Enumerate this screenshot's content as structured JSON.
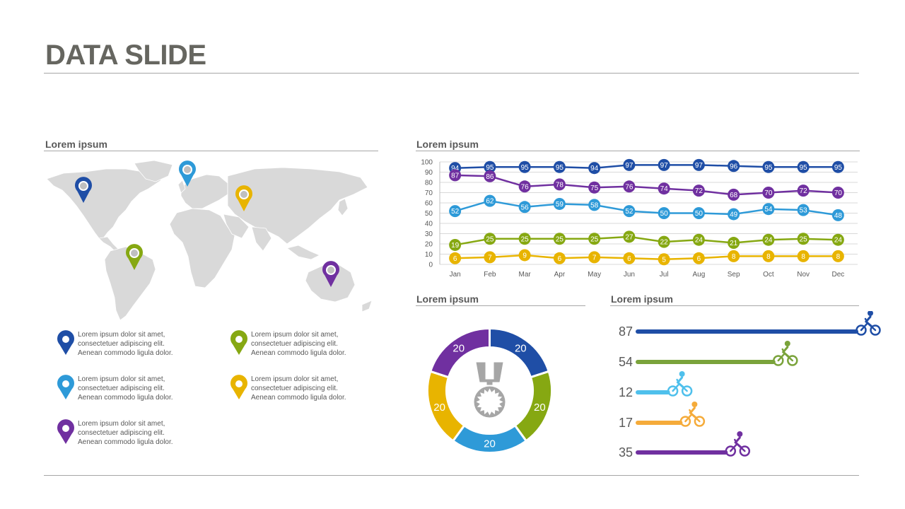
{
  "title": "DATA SLIDE",
  "colors": {
    "blue_dark": "#1f4ea6",
    "purple": "#7030a0",
    "blue_light": "#2e9ad8",
    "green": "#86a812",
    "yellow": "#e8b400",
    "map_gray": "#d9d9d9",
    "rule_gray": "#a6a6a6"
  },
  "map_section": {
    "heading": "Lorem ipsum",
    "pins": [
      {
        "name": "north-america",
        "color": "#1f4ea6"
      },
      {
        "name": "europe-north",
        "color": "#2e9ad8"
      },
      {
        "name": "asia",
        "color": "#e8b400"
      },
      {
        "name": "south-america",
        "color": "#86a812"
      },
      {
        "name": "australia",
        "color": "#7030a0"
      }
    ],
    "legend": [
      {
        "color": "#1f4ea6",
        "text": "Lorem ipsum dolor sit amet,\nconsectetuer adipiscing elit.\nAenean commodo ligula dolor."
      },
      {
        "color": "#86a812",
        "text": "Lorem ipsum dolor sit amet,\nconsectetuer adipiscing elit.\nAenean commodo ligula dolor."
      },
      {
        "color": "#2e9ad8",
        "text": "Lorem ipsum dolor sit amet,\nconsectetuer adipiscing elit.\nAenean commodo ligula dolor."
      },
      {
        "color": "#e8b400",
        "text": "Lorem ipsum dolor sit amet,\nconsectetuer adipiscing elit.\nAenean commodo ligula dolor."
      },
      {
        "color": "#7030a0",
        "text": "Lorem ipsum dolor sit amet,\nconsectetuer adipiscing elit.\nAenean commodo ligula dolor."
      }
    ]
  },
  "chart_data": [
    {
      "type": "line",
      "heading": "Lorem ipsum",
      "categories": [
        "Jan",
        "Feb",
        "Mar",
        "Apr",
        "May",
        "Jun",
        "Jul",
        "Aug",
        "Sep",
        "Oct",
        "Nov",
        "Dec"
      ],
      "ylim": [
        0,
        100
      ],
      "yticks": [
        0,
        10,
        20,
        30,
        40,
        50,
        60,
        70,
        80,
        90,
        100
      ],
      "grid": true,
      "series": [
        {
          "color": "#1f4ea6",
          "values": [
            94,
            95,
            95,
            95,
            94,
            97,
            97,
            97,
            96,
            95,
            95,
            95
          ]
        },
        {
          "color": "#7030a0",
          "values": [
            87,
            86,
            76,
            78,
            75,
            76,
            74,
            72,
            68,
            70,
            72,
            70
          ]
        },
        {
          "color": "#2e9ad8",
          "values": [
            52,
            62,
            56,
            59,
            58,
            52,
            50,
            50,
            49,
            54,
            53,
            48
          ]
        },
        {
          "color": "#86a812",
          "values": [
            19,
            25,
            25,
            25,
            25,
            27,
            22,
            24,
            21,
            24,
            25,
            24
          ]
        },
        {
          "color": "#e8b400",
          "values": [
            6,
            7,
            9,
            6,
            7,
            6,
            5,
            6,
            8,
            8,
            8,
            8
          ]
        }
      ]
    },
    {
      "type": "pie",
      "heading": "Lorem ipsum",
      "center_icon": "medal-icon",
      "slices": [
        {
          "value": 20,
          "color": "#1f4ea6"
        },
        {
          "value": 20,
          "color": "#86a812"
        },
        {
          "value": 20,
          "color": "#2e9ad8"
        },
        {
          "value": 20,
          "color": "#e8b400"
        },
        {
          "value": 20,
          "color": "#7030a0"
        }
      ]
    },
    {
      "type": "bar",
      "heading": "Lorem ipsum",
      "orientation": "horizontal",
      "end_icon": "bicycle-icon",
      "values": [
        87,
        54,
        12,
        17,
        35
      ],
      "colors": [
        "#1f4ea6",
        "#7aa33b",
        "#4fc0ec",
        "#f5ab3a",
        "#7030a0"
      ],
      "xlim": [
        0,
        87
      ]
    }
  ]
}
